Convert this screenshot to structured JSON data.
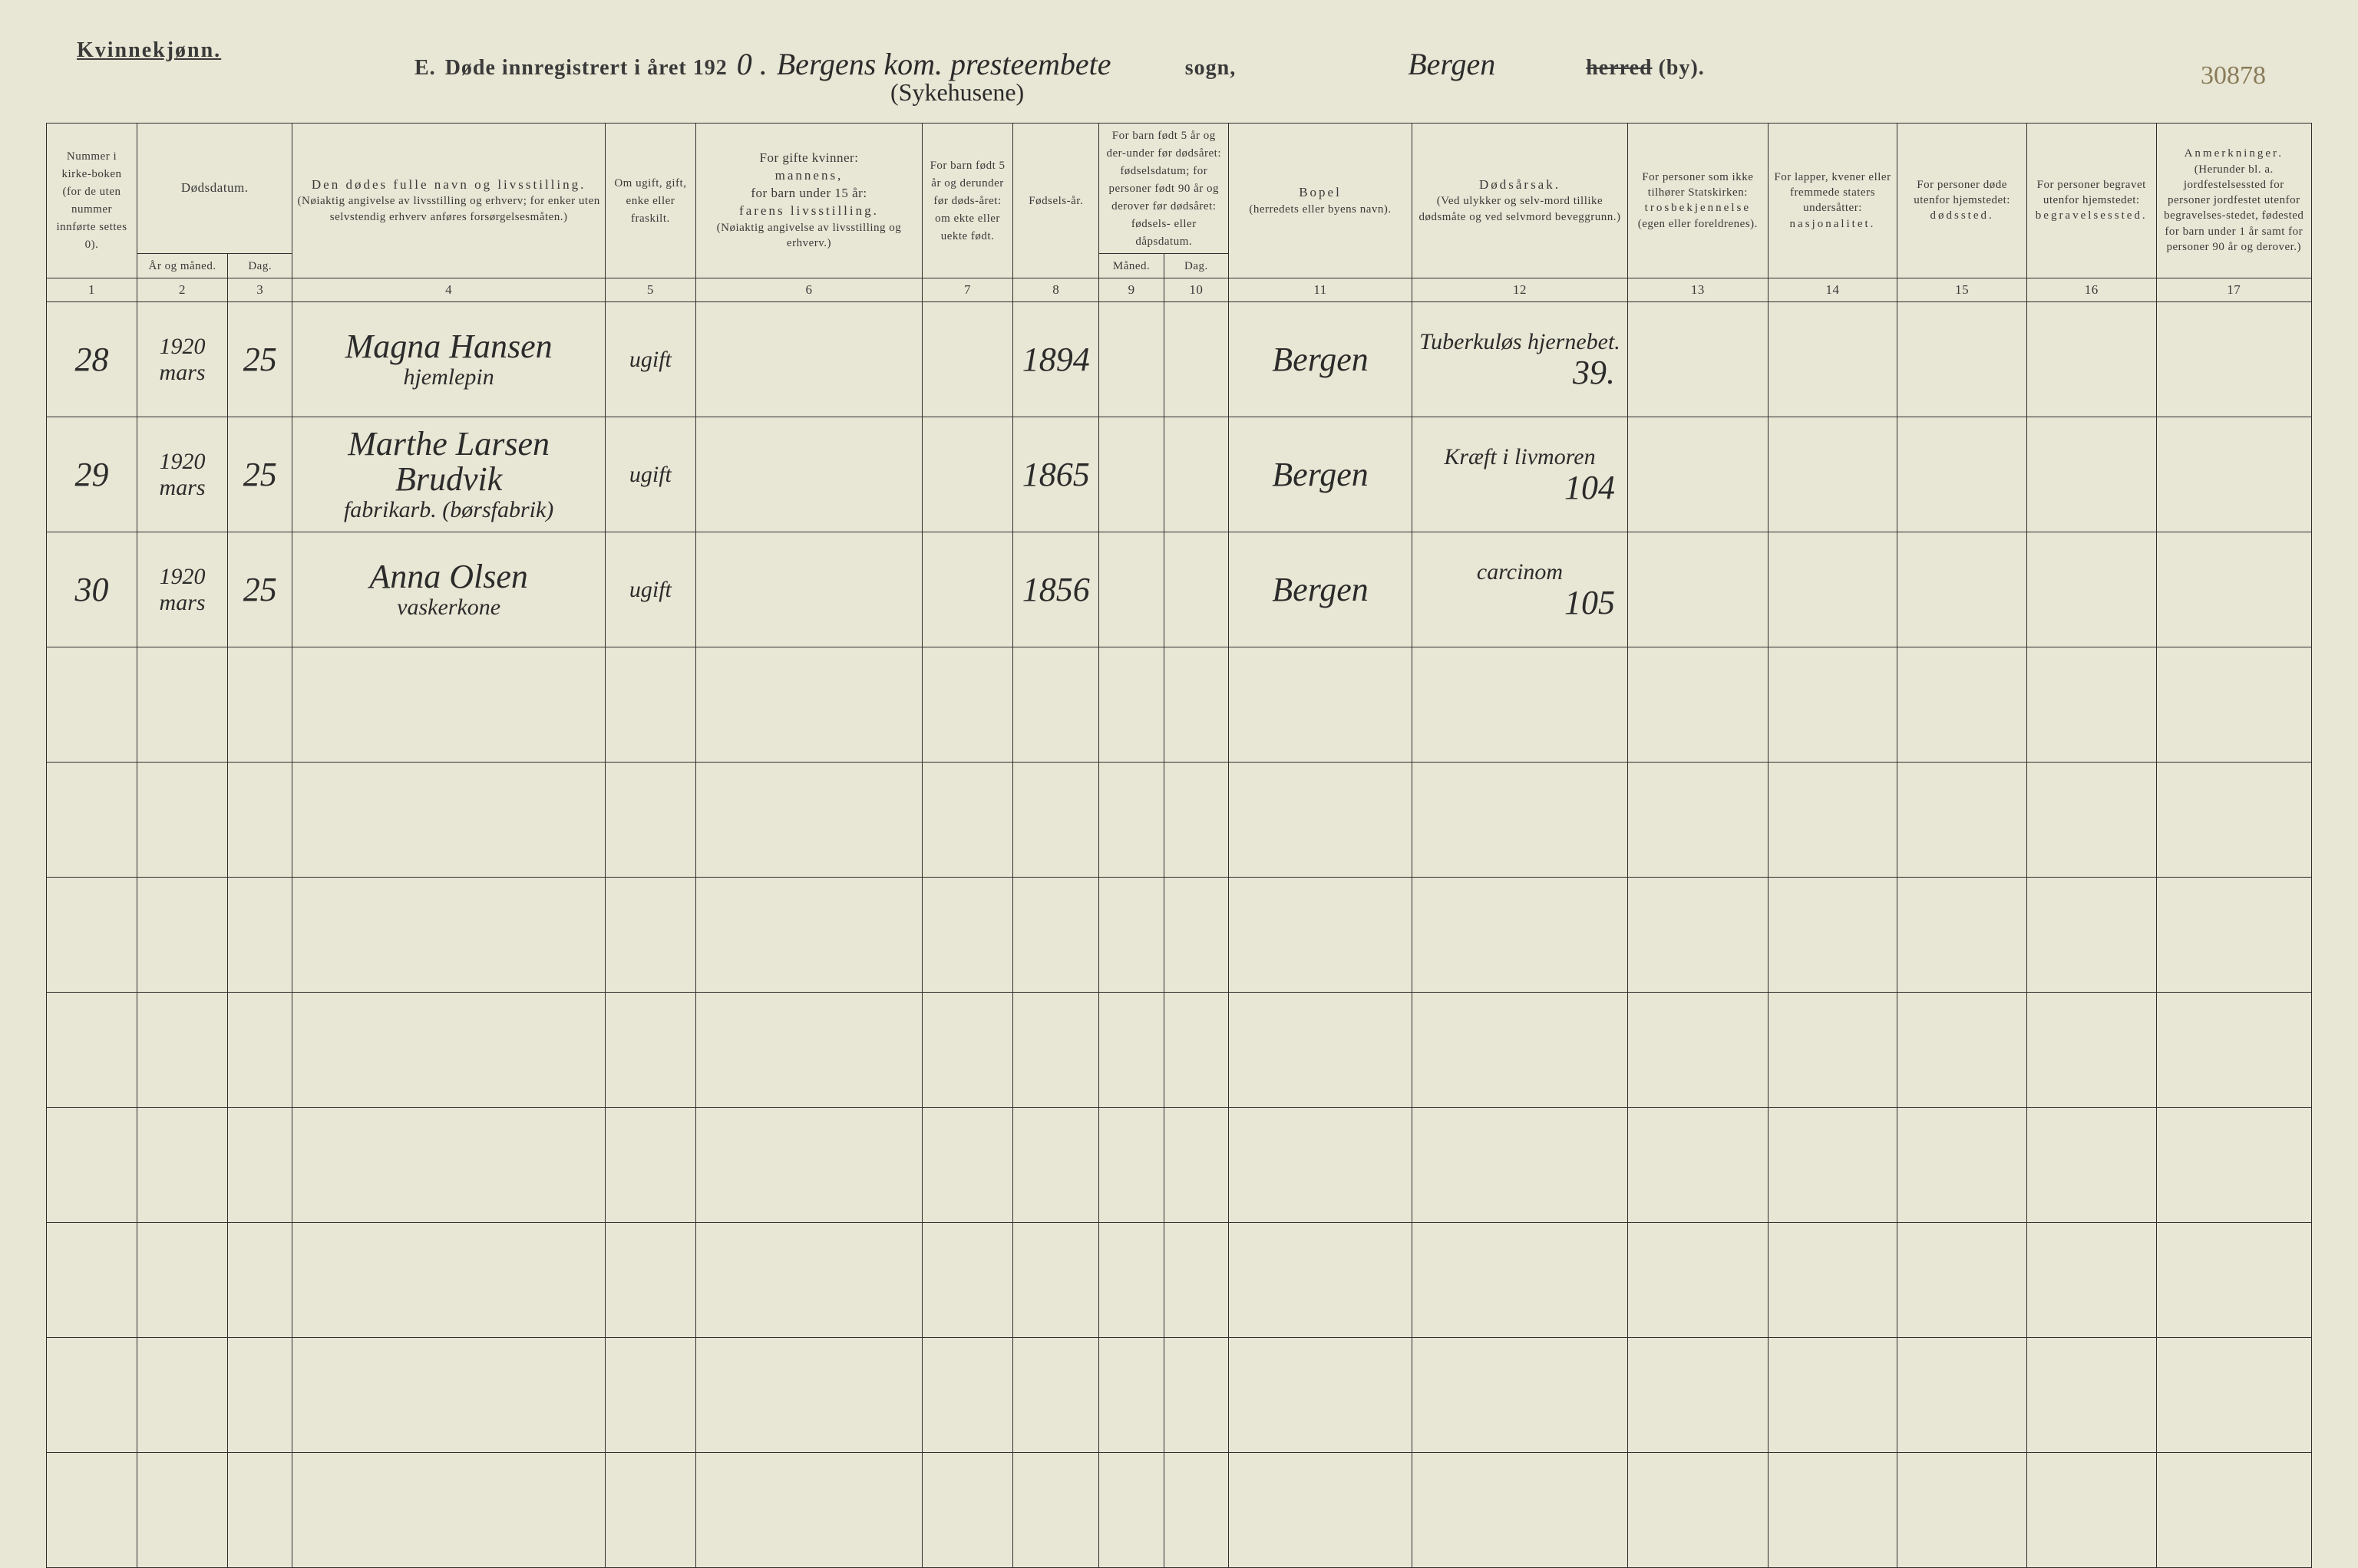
{
  "page": {
    "gender_label": "Kvinnekjønn.",
    "section_letter": "E.",
    "title_prefix": "Døde innregistrert i året 192",
    "year_suffix": "0 .",
    "sogn_hand": "Bergens kom. presteembete",
    "sogn_sub": "(Sykehusene)",
    "sogn_label": "sogn,",
    "herred_hand": "Bergen",
    "herred_label_struck": "herred",
    "herred_label_kept": " (by).",
    "page_number": "30878"
  },
  "headers": {
    "col1": "Nummer i kirke-boken (for de uten nummer innførte settes 0).",
    "col2_group": "Dødsdatum.",
    "col2a": "År og måned.",
    "col2b": "Dag.",
    "col4_line1": "Den dødes fulle navn og livsstilling.",
    "col4_line2": "(Nøiaktig angivelse av livsstilling og erhverv; for enker uten selvstendig erhverv anføres forsørgelsesmåten.)",
    "col5": "Om ugift, gift, enke eller fraskilt.",
    "col6_line1": "For gifte kvinner:",
    "col6_line2": "mannens,",
    "col6_line3": "for barn under 15 år:",
    "col6_line4": "farens livsstilling.",
    "col6_line5": "(Nøiaktig angivelse av livsstilling og erhverv.)",
    "col7": "For barn født 5 år og derunder før døds-året: om ekte eller uekte født.",
    "col8": "Fødsels-år.",
    "col9_10_top": "For barn født 5 år og der-under før dødsåret: fødselsdatum; for personer født 90 år og derover før dødsåret: fødsels- eller dåpsdatum.",
    "col9": "Måned.",
    "col10": "Dag.",
    "col11_line1": "Bopel",
    "col11_line2": "(herredets eller byens navn).",
    "col12_line1": "Dødsårsak.",
    "col12_line2": "(Ved ulykker og selv-mord tillike dødsmåte og ved selvmord beveggrunn.)",
    "col13_line1": "For personer som ikke tilhører Statskirken:",
    "col13_line2": "trosbekjennelse",
    "col13_line3": "(egen eller foreldrenes).",
    "col14_line1": "For lapper, kvener eller fremmede staters undersåtter:",
    "col14_line2": "nasjonalitet.",
    "col15_line1": "For personer døde utenfor hjemstedet:",
    "col15_line2": "dødssted.",
    "col16_line1": "For personer begravet utenfor hjemstedet:",
    "col16_line2": "begravelsessted.",
    "col17_line1": "Anmerkninger.",
    "col17_line2": "(Herunder bl. a. jordfestelsessted for personer jordfestet utenfor begravelses-stedet, fødested for barn under 1 år samt for personer 90 år og derover.)"
  },
  "col_numbers": [
    "1",
    "2",
    "3",
    "4",
    "5",
    "6",
    "7",
    "8",
    "9",
    "10",
    "11",
    "12",
    "13",
    "14",
    "15",
    "16",
    "17"
  ],
  "col_widths_pct": [
    4.2,
    4.2,
    3.0,
    14.5,
    4.2,
    10.5,
    4.2,
    4.0,
    3.0,
    3.0,
    8.5,
    10.0,
    6.5,
    6.0,
    6.0,
    6.0,
    7.2
  ],
  "rows": [
    {
      "num": "28",
      "year_month": "1920\nmars",
      "day": "25",
      "name": "Magna Hansen",
      "name_sub": "hjemlepin",
      "status": "ugift",
      "col6": "",
      "col7": "",
      "birth_year": "1894",
      "col9": "",
      "col10": "",
      "residence": "Bergen",
      "cause": "Tuberkuløs hjernebet.",
      "cause_num": "39."
    },
    {
      "num": "29",
      "year_month": "1920\nmars",
      "day": "25",
      "name": "Marthe Larsen Brudvik",
      "name_sub": "fabrikarb. (børsfabrik)",
      "status": "ugift",
      "col6": "",
      "col7": "",
      "birth_year": "1865",
      "col9": "",
      "col10": "",
      "residence": "Bergen",
      "cause": "Kræft i livmoren",
      "cause_num": "104"
    },
    {
      "num": "30",
      "year_month": "1920\nmars",
      "day": "25",
      "name": "Anna Olsen",
      "name_sub": "vaskerkone",
      "status": "ugift",
      "col6": "",
      "col7": "",
      "birth_year": "1856",
      "col9": "",
      "col10": "",
      "residence": "Bergen",
      "cause": "carcinom",
      "cause_num": "105"
    }
  ],
  "empty_row_count": 8,
  "colors": {
    "paper": "#e8e6d4",
    "ink": "#3a3a3a",
    "hand": "#2b2b2b",
    "rule": "#2f2f2f",
    "pencil": "#8a7c5a"
  }
}
